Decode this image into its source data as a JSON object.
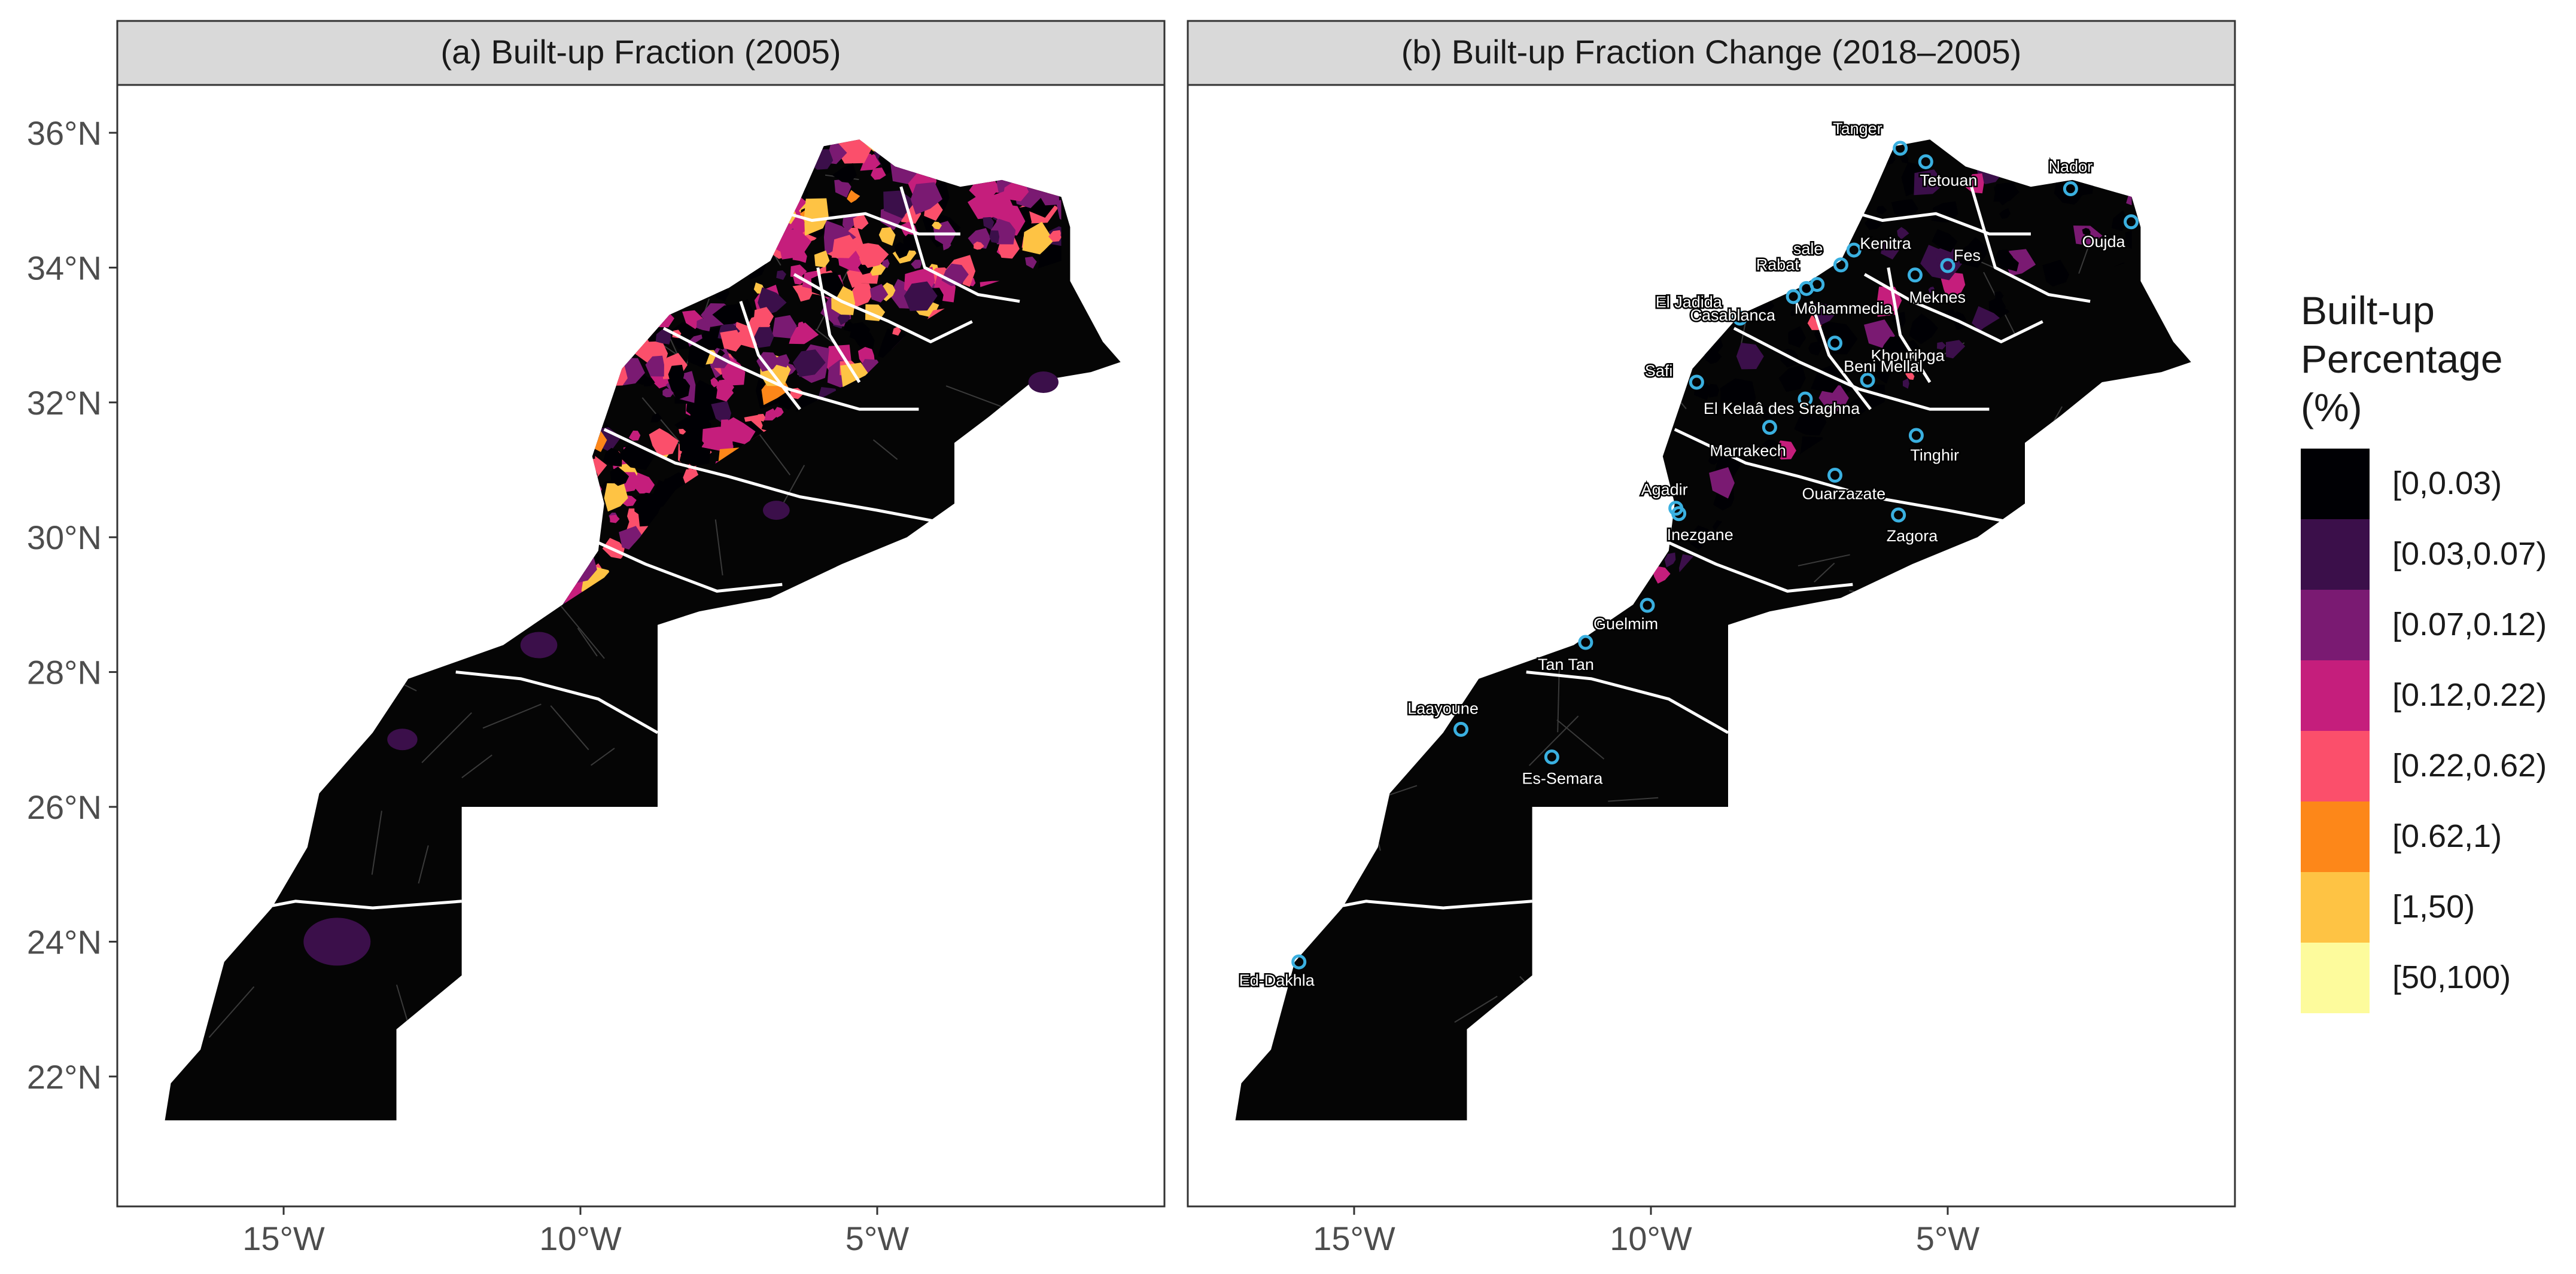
{
  "figure": {
    "panels": [
      {
        "strip_title": "(a) Built-up Fraction (2005)",
        "x_ticks": [
          "15°W",
          "10°W",
          "5°W"
        ],
        "y_ticks": [
          "36°N",
          "34°N",
          "32°N",
          "30°N",
          "28°N",
          "26°N",
          "24°N",
          "22°N"
        ]
      },
      {
        "strip_title": "(b) Built-up Fraction Change (2018–2005)",
        "x_ticks": [
          "15°W",
          "10°W",
          "5°W"
        ],
        "cities": [
          {
            "name": "Tanger",
            "lon": -5.8,
            "lat": 35.77
          },
          {
            "name": "Tetouan",
            "lon": -5.37,
            "lat": 35.57
          },
          {
            "name": "Nador",
            "lon": -2.93,
            "lat": 35.17
          },
          {
            "name": "Oujda",
            "lon": -1.91,
            "lat": 34.68
          },
          {
            "name": "Kenitra",
            "lon": -6.58,
            "lat": 34.26
          },
          {
            "name": "sale",
            "lon": -6.8,
            "lat": 34.04
          },
          {
            "name": "Fes",
            "lon": -5.0,
            "lat": 34.03
          },
          {
            "name": "Rabat",
            "lon": -7.2,
            "lat": 33.75
          },
          {
            "name": "Meknes",
            "lon": -5.55,
            "lat": 33.89
          },
          {
            "name": "El Jadida",
            "lon": -8.5,
            "lat": 33.25
          },
          {
            "name": "Mohammedia",
            "lon": -7.38,
            "lat": 33.69
          },
          {
            "name": "Khouribga",
            "lon": -6.9,
            "lat": 32.88
          },
          {
            "name": "Casablanca",
            "lon": -7.6,
            "lat": 33.57
          },
          {
            "name": "Beni Mellal",
            "lon": -6.35,
            "lat": 32.33
          },
          {
            "name": "Safi",
            "lon": -9.23,
            "lat": 32.3
          },
          {
            "name": "El Kelaâ des Sraghna",
            "lon": -7.4,
            "lat": 32.05
          },
          {
            "name": "Marrakech",
            "lon": -8.0,
            "lat": 31.63
          },
          {
            "name": "Tinghir",
            "lon": -5.53,
            "lat": 31.51
          },
          {
            "name": "Agadir",
            "lon": -9.58,
            "lat": 30.43
          },
          {
            "name": "Ouarzazate",
            "lon": -6.9,
            "lat": 30.92
          },
          {
            "name": "Inezgane",
            "lon": -9.53,
            "lat": 30.35
          },
          {
            "name": "Zagora",
            "lon": -5.83,
            "lat": 30.33
          },
          {
            "name": "Guelmim",
            "lon": -10.06,
            "lat": 28.99
          },
          {
            "name": "Tan Tan",
            "lon": -11.1,
            "lat": 28.44
          },
          {
            "name": "Laayoune",
            "lon": -13.2,
            "lat": 27.15
          },
          {
            "name": "Es-Semara",
            "lon": -11.67,
            "lat": 26.74
          },
          {
            "name": "Ed-Dakhla",
            "lon": -15.93,
            "lat": 23.7
          }
        ]
      }
    ],
    "legend": {
      "title_lines": [
        "Built-up",
        "Percentage",
        "(%)"
      ],
      "items": [
        {
          "label": "[0,0.03)",
          "color": "#000004"
        },
        {
          "label": "[0.03,0.07)",
          "color": "#3b0f4a"
        },
        {
          "label": "[0.07,0.12)",
          "color": "#7a1a72"
        },
        {
          "label": "[0.12,0.22)",
          "color": "#c51e7c"
        },
        {
          "label": "[0.22,0.62)",
          "color": "#fb4f6b"
        },
        {
          "label": "[0.62,1)",
          "color": "#fd8719"
        },
        {
          "label": "[1,50)",
          "color": "#fec344"
        },
        {
          "label": "[50,100)",
          "color": "#fdfb9c"
        }
      ]
    },
    "colors": {
      "land": "#050505",
      "region_border": "#ffffff",
      "strip_fill": "#d9d9d9",
      "city_marker": "#3ab0e0"
    }
  }
}
